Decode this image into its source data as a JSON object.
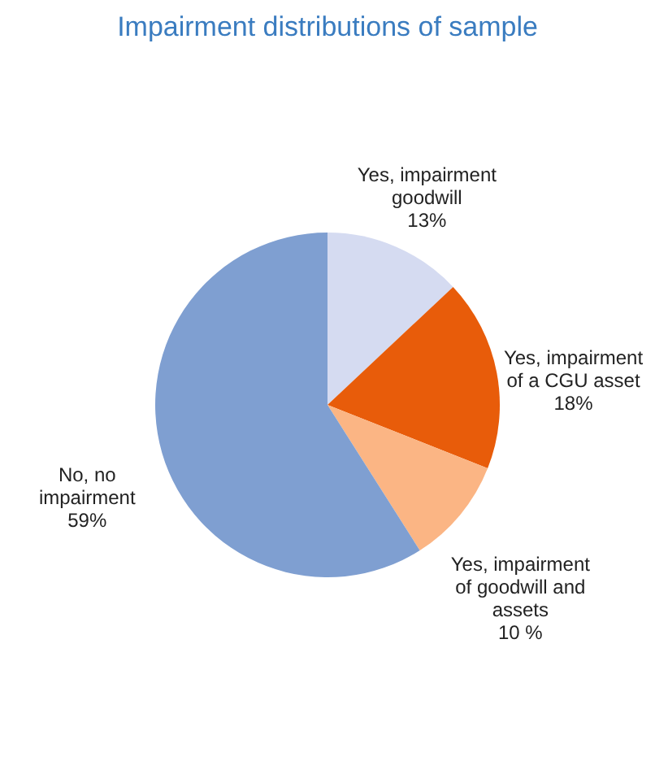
{
  "chart_data": {
    "type": "pie",
    "title": "Impairment distributions of sample",
    "categories": [
      "Yes, impairment goodwill",
      "Yes, impairment of a CGU asset",
      "Yes, impairment of goodwill and assets",
      "No, no impairment"
    ],
    "values": [
      13,
      18,
      10,
      59
    ],
    "value_labels": [
      "13%",
      "18%",
      "10 %",
      "59%"
    ],
    "colors": [
      "#d5dbf1",
      "#e85c0a",
      "#fbb584",
      "#7f9fd1"
    ]
  }
}
